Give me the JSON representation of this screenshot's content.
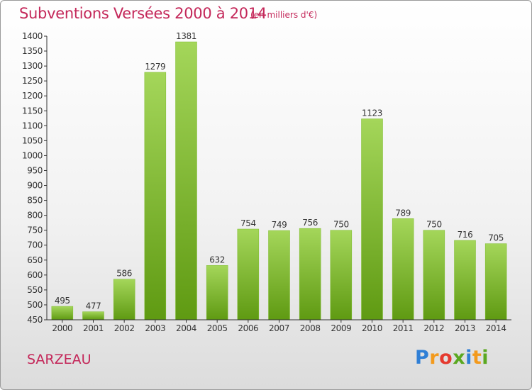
{
  "header": {
    "title": "Subventions Versées 2000 à 2014",
    "subtitle": "(en milliers d'€)"
  },
  "footer": {
    "commune": "SARZEAU",
    "logo": "Proxiti",
    "logo_colors": [
      "#2f7fd6",
      "#f39a1d",
      "#e53a2f",
      "#5aa820",
      "#2f7fd6",
      "#f39a1d",
      "#5aa820"
    ]
  },
  "chart_data": {
    "type": "bar",
    "categories": [
      "2000",
      "2001",
      "2002",
      "2003",
      "2004",
      "2005",
      "2006",
      "2007",
      "2008",
      "2009",
      "2010",
      "2011",
      "2012",
      "2013",
      "2014"
    ],
    "values": [
      495,
      477,
      586,
      1279,
      1381,
      632,
      754,
      749,
      756,
      750,
      1123,
      789,
      750,
      716,
      705
    ],
    "title": "Subventions Versées 2000 à 2014",
    "subtitle": "(en milliers d'€)",
    "ylim": [
      450,
      1400
    ],
    "yticks": [
      450,
      500,
      550,
      600,
      650,
      700,
      750,
      800,
      850,
      900,
      950,
      1000,
      1050,
      1100,
      1150,
      1200,
      1250,
      1300,
      1350,
      1400
    ],
    "grid": false,
    "colors": {
      "bar_top": "#a4d65a",
      "bar_bottom": "#5f9a12",
      "bar_edge": "#7cbb2a",
      "axis": "#333333"
    }
  }
}
